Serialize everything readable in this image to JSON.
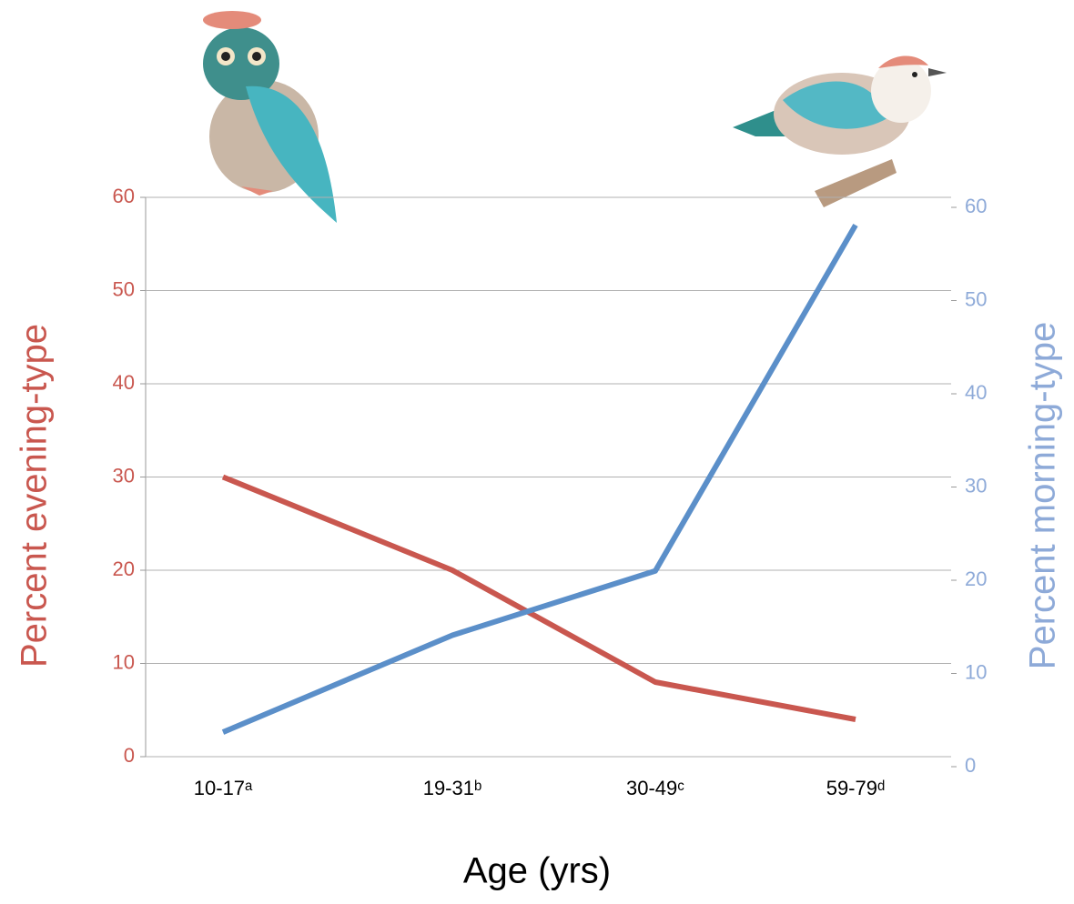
{
  "chart_data": {
    "type": "line",
    "x_label": "Age (yrs)",
    "y_label": "Percent evening-type",
    "y2_label": "Percent morning-type",
    "categories": [
      "10-17ᵃ",
      "19-31ᵇ",
      "30-49ᶜ",
      "59-79ᵈ"
    ],
    "series": [
      {
        "color": "#c9574f",
        "values": [
          30,
          20,
          8,
          4
        ]
      },
      {
        "color": "#5b8fc9",
        "axis": "y2",
        "values": [
          3.7,
          14.1,
          21,
          58.1
        ]
      }
    ],
    "ylim": [
      0,
      60
    ],
    "yticks": [
      0,
      10,
      20,
      30,
      40,
      50,
      60
    ],
    "y2lim": [
      0,
      60
    ],
    "y2ticks": [
      0,
      10,
      20,
      30,
      40,
      50,
      60
    ],
    "y_color": "#c9574f",
    "y2_color": "#8eaad8",
    "grid": true
  }
}
